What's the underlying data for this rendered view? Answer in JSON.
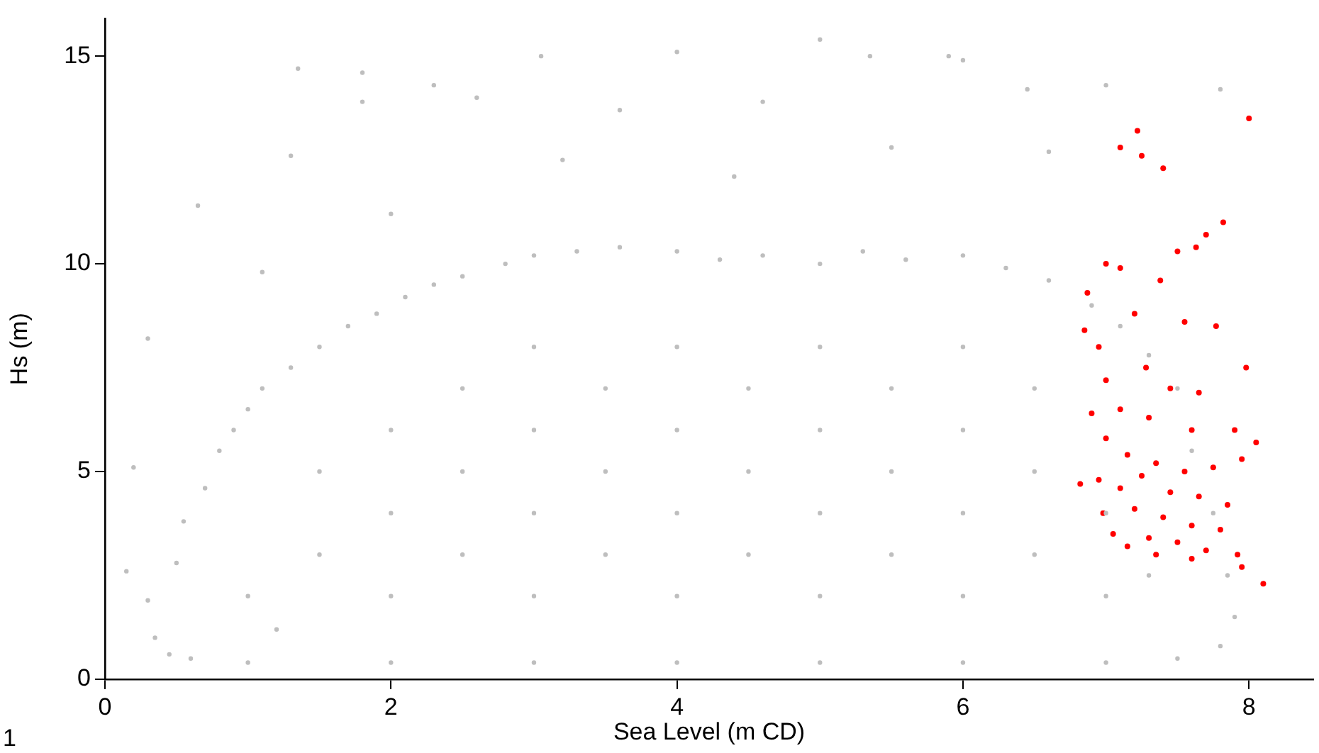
{
  "chart_data": {
    "type": "scatter",
    "xlabel": "Sea Level (m CD)",
    "ylabel": "Hs (m)",
    "xlim": [
      0,
      8.45
    ],
    "ylim": [
      0,
      15.9
    ],
    "xticks": [
      0,
      2,
      4,
      6,
      8
    ],
    "yticks": [
      0,
      5,
      10,
      15
    ],
    "grid": false,
    "legend": false,
    "marker": "circle",
    "annotations": [
      "1"
    ],
    "series": [
      {
        "color": "#bebebe",
        "x": [
          0.15,
          0.2,
          0.3,
          0.35,
          0.45,
          0.5,
          0.55,
          0.6,
          0.7,
          0.8,
          0.9,
          1.0,
          1.0,
          1.1,
          1.3,
          1.5,
          1.7,
          1.9,
          2.1,
          2.3,
          2.5,
          2.8,
          3.0,
          3.3,
          3.6,
          4.0,
          4.3,
          4.6,
          5.0,
          5.3,
          5.6,
          6.0,
          6.3,
          6.6,
          6.9,
          7.1,
          7.3,
          7.5,
          7.6,
          7.75,
          7.85,
          7.9,
          7.8,
          7.5,
          7.0,
          6.0,
          5.0,
          4.0,
          3.0,
          2.0,
          1,
          1.5,
          1.5,
          2,
          2,
          2,
          2.5,
          2.5,
          2.5,
          3,
          3,
          3,
          3,
          3.5,
          3.5,
          3.5,
          4,
          4,
          4,
          4,
          4.5,
          4.5,
          4.5,
          5,
          5,
          5,
          5,
          5.5,
          5.5,
          5.5,
          6,
          6,
          6,
          6,
          6.5,
          6.5,
          6.5,
          7,
          7,
          7.3,
          1.2,
          0.65,
          1.3,
          1.35,
          1.8,
          1.8,
          2.3,
          2.6,
          3.05,
          3.6,
          4.0,
          4.6,
          5.0,
          5.35,
          5.9,
          6.0,
          6.45,
          7.0,
          7.8,
          2.0,
          3.2,
          4.4,
          5.5,
          6.6,
          1.1,
          0.3
        ],
        "values": [
          2.6,
          5.1,
          1.9,
          1.0,
          0.6,
          2.8,
          3.8,
          0.5,
          4.6,
          5.5,
          6.0,
          6.5,
          0.4,
          7.0,
          7.5,
          8.0,
          8.5,
          8.8,
          9.2,
          9.5,
          9.7,
          10.0,
          10.2,
          10.3,
          10.4,
          10.3,
          10.1,
          10.2,
          10.0,
          10.3,
          10.1,
          10.2,
          9.9,
          9.6,
          9.0,
          8.5,
          7.8,
          7.0,
          5.5,
          4.0,
          2.5,
          1.5,
          0.8,
          0.5,
          0.4,
          0.4,
          0.4,
          0.4,
          0.4,
          0.4,
          2,
          3,
          5,
          2,
          4,
          6,
          3,
          5,
          7,
          2,
          4,
          6,
          8,
          3,
          5,
          7,
          2,
          4,
          6,
          8,
          3,
          5,
          7,
          2,
          4,
          6,
          8,
          3,
          5,
          7,
          2,
          4,
          6,
          8,
          3,
          5,
          7,
          2,
          4,
          2.5,
          1.2,
          11.4,
          12.6,
          14.7,
          14.6,
          13.9,
          14.3,
          14.0,
          15.0,
          13.7,
          15.1,
          13.9,
          15.4,
          15.0,
          15.0,
          14.9,
          14.2,
          14.3,
          14.2,
          11.2,
          12.5,
          12.1,
          12.8,
          12.7,
          9.8,
          8.2
        ]
      },
      {
        "color": "#ff0000",
        "x": [
          7.1,
          7.22,
          7.25,
          7.4,
          8.0,
          7.82,
          7.7,
          7.63,
          7.5,
          7.38,
          7.0,
          7.1,
          6.87,
          6.85,
          6.95,
          7.2,
          7.55,
          7.77,
          7.98,
          7.28,
          7.0,
          7.45,
          7.65,
          6.9,
          7.1,
          7.3,
          7.6,
          7.9,
          8.05,
          7.0,
          7.15,
          7.35,
          7.55,
          7.75,
          7.95,
          6.95,
          7.1,
          7.25,
          7.45,
          7.65,
          7.85,
          6.98,
          7.2,
          7.4,
          7.6,
          7.8,
          7.05,
          7.3,
          7.5,
          7.7,
          7.92,
          7.15,
          7.35,
          7.6,
          8.1,
          7.95,
          6.82
        ],
        "values": [
          12.8,
          13.2,
          12.6,
          12.3,
          13.5,
          11.0,
          10.7,
          10.4,
          10.3,
          9.6,
          10.0,
          9.9,
          9.3,
          8.4,
          8.0,
          8.8,
          8.6,
          8.5,
          7.5,
          7.5,
          7.2,
          7.0,
          6.9,
          6.4,
          6.5,
          6.3,
          6.0,
          6.0,
          5.7,
          5.8,
          5.4,
          5.2,
          5.0,
          5.1,
          5.3,
          4.8,
          4.6,
          4.9,
          4.5,
          4.4,
          4.2,
          4.0,
          4.1,
          3.9,
          3.7,
          3.6,
          3.5,
          3.4,
          3.3,
          3.1,
          3.0,
          3.2,
          3.0,
          2.9,
          2.3,
          2.7,
          4.7
        ]
      }
    ]
  }
}
